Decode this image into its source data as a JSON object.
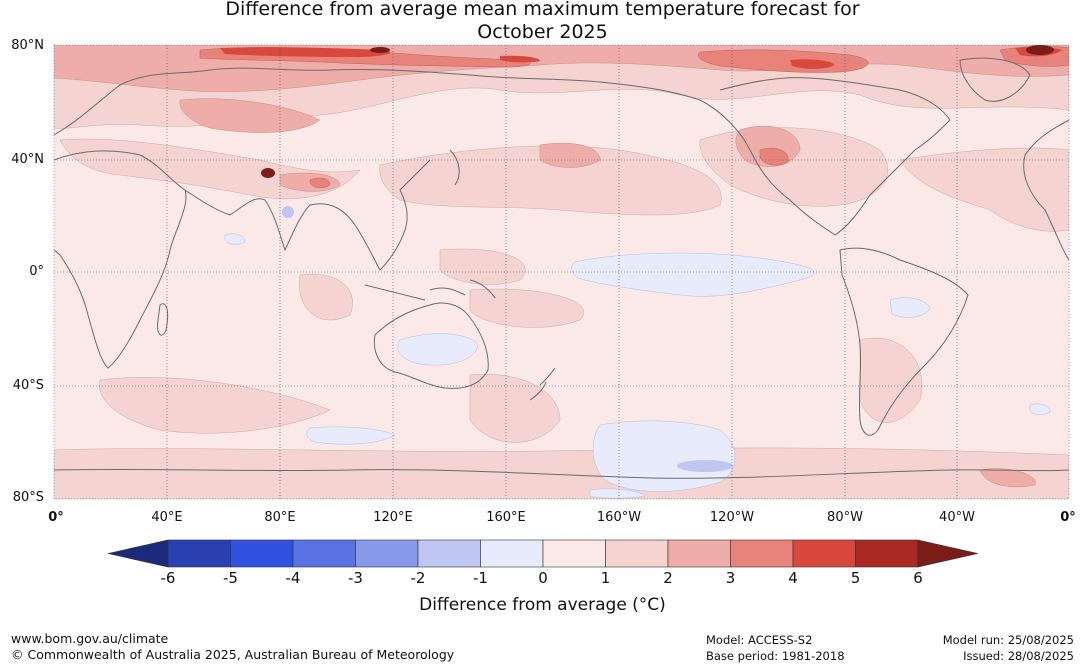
{
  "title": {
    "line1": "Difference from average mean maximum temperature forecast for",
    "line2": "October 2025"
  },
  "latitude_labels": [
    "80°N",
    "40°N",
    "0°",
    "40°S",
    "80°S"
  ],
  "longitude_labels": [
    "0°",
    "40°E",
    "80°E",
    "120°E",
    "160°E",
    "160°W",
    "120°W",
    "80°W",
    "40°W",
    "0°"
  ],
  "colorbar": {
    "label": "Difference from average (°C)",
    "ticks": [
      "-6",
      "-5",
      "-4",
      "-3",
      "-2",
      "-1",
      "0",
      "1",
      "2",
      "3",
      "4",
      "5",
      "6"
    ],
    "colors": [
      "#1b2a7a",
      "#2a3fb0",
      "#3152e0",
      "#5a72e4",
      "#8898ea",
      "#bfc6f2",
      "#e8ebfb",
      "#fbe9e7",
      "#f5d3d0",
      "#eeada8",
      "#e8837b",
      "#d9483d",
      "#a92a23",
      "#7a1c17"
    ]
  },
  "footer": {
    "website": "www.bom.gov.au/climate",
    "copyright": "© Commonwealth of Australia 2025, Australian Bureau of Meteorology",
    "model": "Model: ACCESS-S2",
    "base_period": "Base period: 1981-2018",
    "model_run": "Model run: 25/08/2025",
    "issued": "Issued: 28/08/2025"
  }
}
